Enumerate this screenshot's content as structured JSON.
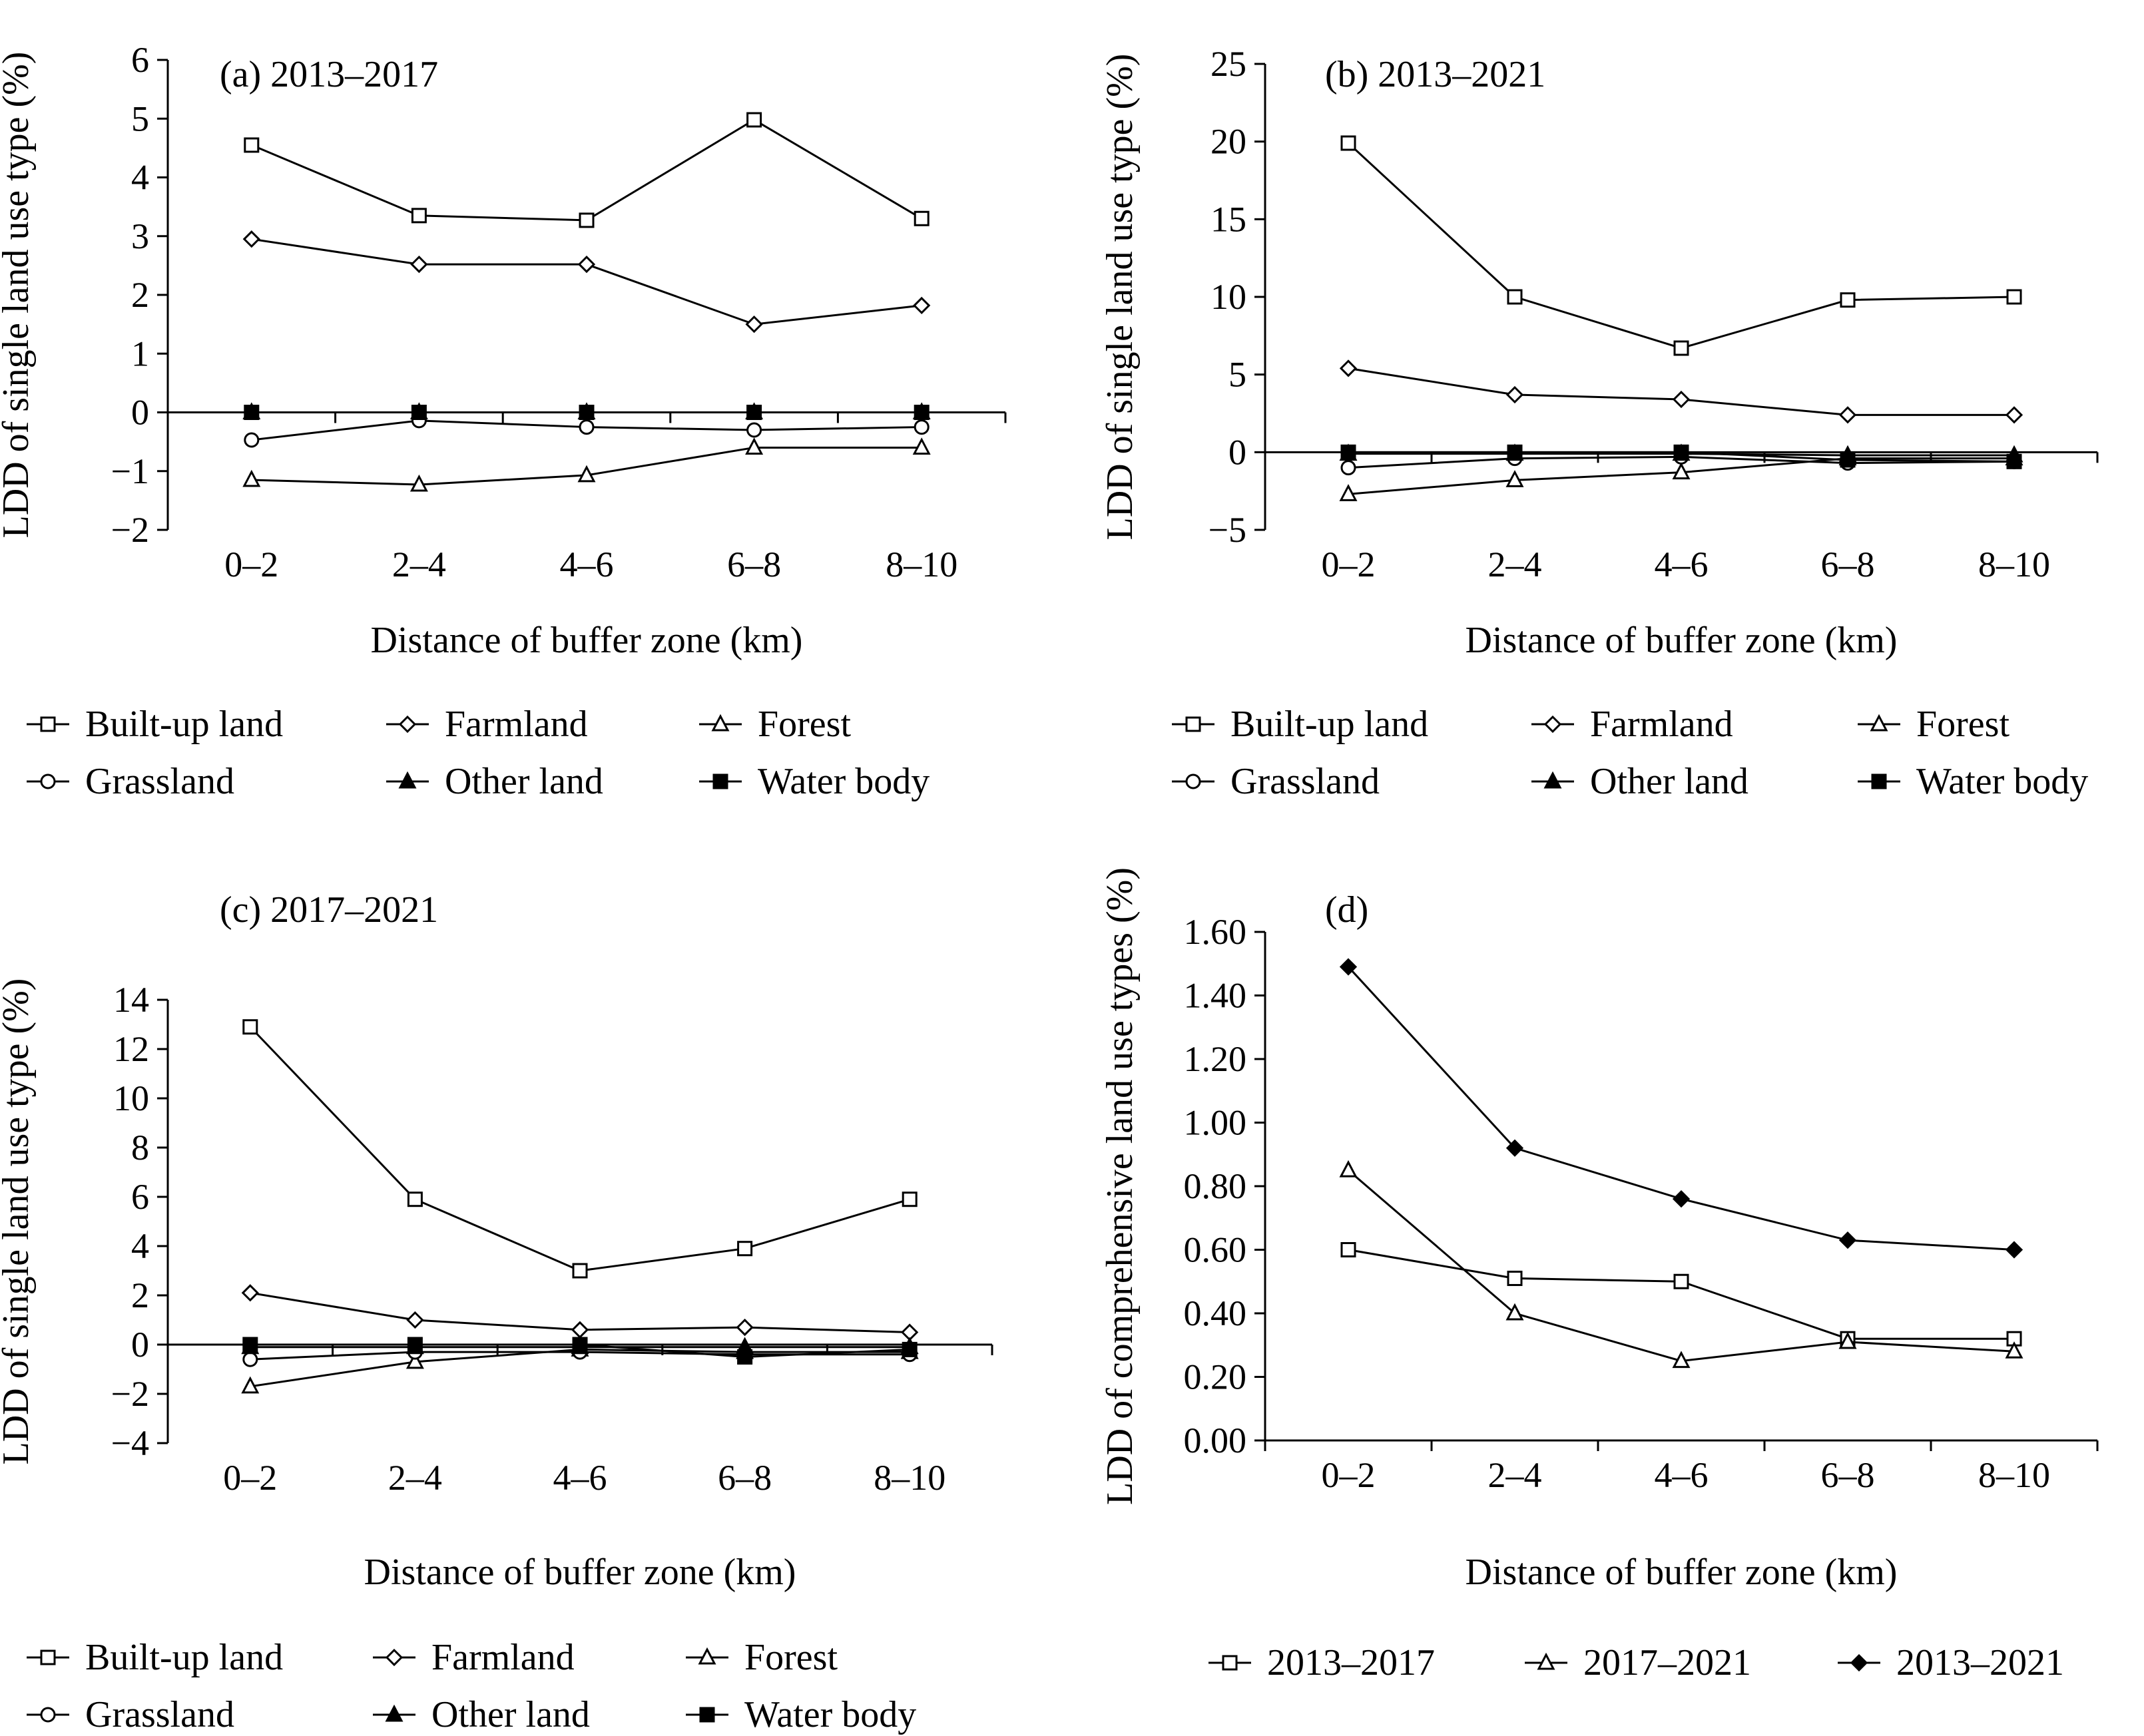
{
  "series_styles": {
    "Built-up land": {
      "marker": "square-open"
    },
    "Farmland": {
      "marker": "diamond-open"
    },
    "Forest": {
      "marker": "triangle-open"
    },
    "Grassland": {
      "marker": "circle-open"
    },
    "Other land": {
      "marker": "triangle-filled"
    },
    "Water body": {
      "marker": "square-filled"
    },
    "2013–2017": {
      "marker": "square-open"
    },
    "2017–2021": {
      "marker": "triangle-open"
    },
    "2013–2021": {
      "marker": "diamond-filled"
    }
  },
  "chart_data": [
    {
      "id": "a",
      "type": "line",
      "title": "(a) 2013–2017",
      "xlabel": "Distance of buffer zone (km)",
      "ylabel": "LDD of single land use type (%)",
      "categories": [
        "0–2",
        "2–4",
        "4–6",
        "6–8",
        "8–10"
      ],
      "ylim": [
        -2,
        6
      ],
      "yticks": [
        -2,
        -1,
        0,
        1,
        2,
        3,
        4,
        5,
        6
      ],
      "ytick_labels": [
        "−2",
        "−1",
        "0",
        "1",
        "2",
        "3",
        "4",
        "5",
        "6"
      ],
      "legend": [
        "Built-up land",
        "Farmland",
        "Forest",
        "Grassland",
        "Other land",
        "Water body"
      ],
      "series": [
        {
          "name": "Built-up land",
          "values": [
            4.55,
            3.35,
            3.27,
            4.98,
            3.3
          ]
        },
        {
          "name": "Farmland",
          "values": [
            2.95,
            2.52,
            2.52,
            1.5,
            1.82
          ]
        },
        {
          "name": "Forest",
          "values": [
            -1.15,
            -1.23,
            -1.07,
            -0.6,
            -0.6
          ]
        },
        {
          "name": "Grassland",
          "values": [
            -0.47,
            -0.14,
            -0.25,
            -0.3,
            -0.25
          ]
        },
        {
          "name": "Other land",
          "values": [
            0,
            0,
            0,
            0,
            0
          ]
        },
        {
          "name": "Water body",
          "values": [
            0,
            0,
            0,
            0,
            0
          ]
        }
      ]
    },
    {
      "id": "b",
      "type": "line",
      "title": "(b) 2013–2021",
      "xlabel": "Distance of buffer zone (km)",
      "ylabel": "LDD of single land use type (%)",
      "categories": [
        "0–2",
        "2–4",
        "4–6",
        "6–8",
        "8–10"
      ],
      "ylim": [
        -5,
        25
      ],
      "yticks": [
        -5,
        0,
        5,
        10,
        15,
        20,
        25
      ],
      "ytick_labels": [
        "−5",
        "0",
        "5",
        "10",
        "15",
        "20",
        "25"
      ],
      "legend": [
        "Built-up land",
        "Farmland",
        "Forest",
        "Grassland",
        "Other land",
        "Water body"
      ],
      "series": [
        {
          "name": "Built-up land",
          "values": [
            19.9,
            10.0,
            6.7,
            9.8,
            10.0
          ]
        },
        {
          "name": "Farmland",
          "values": [
            5.4,
            3.7,
            3.4,
            2.4,
            2.4
          ]
        },
        {
          "name": "Forest",
          "values": [
            -2.7,
            -1.8,
            -1.3,
            -0.4,
            -0.4
          ]
        },
        {
          "name": "Grassland",
          "values": [
            -1.0,
            -0.4,
            -0.3,
            -0.7,
            -0.6
          ]
        },
        {
          "name": "Other land",
          "values": [
            -0.1,
            -0.1,
            -0.1,
            -0.2,
            -0.2
          ]
        },
        {
          "name": "Water body",
          "values": [
            0,
            0,
            0,
            -0.5,
            -0.6
          ]
        }
      ]
    },
    {
      "id": "c",
      "type": "line",
      "title": "(c) 2017–2021",
      "xlabel": "Distance of buffer zone (km)",
      "ylabel": "LDD of single land use type (%)",
      "categories": [
        "0–2",
        "2–4",
        "4–6",
        "6–8",
        "8–10"
      ],
      "ylim": [
        -4,
        14
      ],
      "yticks": [
        -4,
        -2,
        0,
        2,
        4,
        6,
        8,
        10,
        12,
        14
      ],
      "ytick_labels": [
        "−4",
        "−2",
        "0",
        "2",
        "4",
        "6",
        "8",
        "10",
        "12",
        "14"
      ],
      "legend": [
        "Built-up land",
        "Farmland",
        "Forest",
        "Grassland",
        "Other land",
        "Water body"
      ],
      "series": [
        {
          "name": "Built-up land",
          "values": [
            12.9,
            5.9,
            3.0,
            3.9,
            5.9
          ]
        },
        {
          "name": "Farmland",
          "values": [
            2.1,
            1.0,
            0.6,
            0.7,
            0.5
          ]
        },
        {
          "name": "Forest",
          "values": [
            -1.7,
            -0.7,
            -0.2,
            -0.3,
            -0.3
          ]
        },
        {
          "name": "Grassland",
          "values": [
            -0.6,
            -0.3,
            -0.3,
            -0.4,
            -0.4
          ]
        },
        {
          "name": "Other land",
          "values": [
            -0.1,
            -0.1,
            -0.1,
            -0.1,
            -0.1
          ]
        },
        {
          "name": "Water body",
          "values": [
            0,
            0,
            0,
            -0.5,
            -0.2
          ]
        }
      ]
    },
    {
      "id": "d",
      "type": "line",
      "title": "(d)",
      "xlabel": "Distance of buffer zone (km)",
      "ylabel": "LDD of comprehensive land use types (%)",
      "categories": [
        "0–2",
        "2–4",
        "4–6",
        "6–8",
        "8–10"
      ],
      "ylim": [
        0,
        1.6
      ],
      "yticks": [
        0,
        0.2,
        0.4,
        0.6,
        0.8,
        1.0,
        1.2,
        1.4,
        1.6
      ],
      "ytick_labels": [
        "0.00",
        "0.20",
        "0.40",
        "0.60",
        "0.80",
        "1.00",
        "1.20",
        "1.40",
        "1.60"
      ],
      "legend": [
        "2013–2017",
        "2017–2021",
        "2013–2021"
      ],
      "series": [
        {
          "name": "2013–2017",
          "values": [
            0.6,
            0.51,
            0.5,
            0.32,
            0.32
          ]
        },
        {
          "name": "2017–2021",
          "values": [
            0.85,
            0.4,
            0.25,
            0.31,
            0.28
          ]
        },
        {
          "name": "2013–2021",
          "values": [
            1.49,
            0.92,
            0.76,
            0.63,
            0.6
          ]
        }
      ]
    }
  ]
}
